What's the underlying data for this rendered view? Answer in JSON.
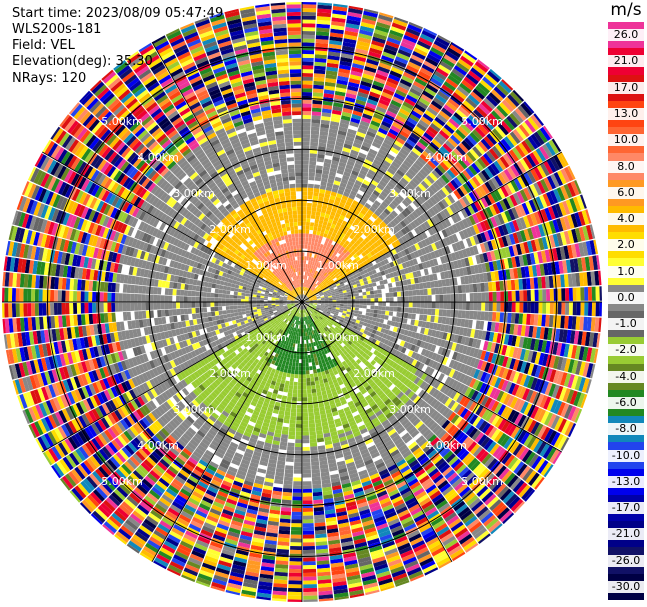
{
  "header": {
    "start_time": "Start time: 2023/08/09 05:47:49",
    "station": "WLS200s-181",
    "field": "Field: VEL",
    "elevation": "Elevation(deg): 35.30",
    "nrays": "NRays: 120"
  },
  "chart_data": {
    "type": "ppi-polar-heatmap",
    "title": "",
    "field": "VEL",
    "unit": "m/s",
    "n_rays": 120,
    "elevation_deg": 35.3,
    "range_rings_km": [
      1.0,
      2.0,
      3.0,
      4.0,
      5.0
    ],
    "range_ring_labels": [
      "1.00km",
      "2.00km",
      "3.00km",
      "4.00km",
      "5.00km"
    ],
    "max_range_km": 5.9,
    "colorbar": {
      "title": "m/s",
      "ticks": [
        "26.0",
        "21.0",
        "17.0",
        "13.0",
        "10.0",
        "8.0",
        "6.0",
        "4.0",
        "2.0",
        "1.0",
        "0.0",
        "-1.0",
        "-2.0",
        "-4.0",
        "-6.0",
        "-8.0",
        "-10.0",
        "-13.0",
        "-17.0",
        "-21.0",
        "-26.0",
        "-30.0"
      ],
      "bins": [
        {
          "label": "26.0",
          "color": "#ee3399"
        },
        {
          "label": "21.0",
          "color": "#ee0033"
        },
        {
          "label": "17.0",
          "color": "#dd1111"
        },
        {
          "label": "13.0",
          "color": "#ff4411"
        },
        {
          "label": "10.0",
          "color": "#ff6633"
        },
        {
          "label": "8.0",
          "color": "#ff8866"
        },
        {
          "label": "6.0",
          "color": "#ff9922"
        },
        {
          "label": "4.0",
          "color": "#ffbb00"
        },
        {
          "label": "2.0",
          "color": "#ffdd00"
        },
        {
          "label": "1.0",
          "color": "#ffff33"
        },
        {
          "label": "0.0",
          "color": "#888888"
        },
        {
          "label": "-1.0",
          "color": "#666666"
        },
        {
          "label": "-2.0",
          "color": "#99cc33"
        },
        {
          "label": "-4.0",
          "color": "#668822"
        },
        {
          "label": "-6.0",
          "color": "#228822"
        },
        {
          "label": "-8.0",
          "color": "#1188bb"
        },
        {
          "label": "-10.0",
          "color": "#2244ee"
        },
        {
          "label": "-13.0",
          "color": "#0000ee"
        },
        {
          "label": "-17.0",
          "color": "#0000aa"
        },
        {
          "label": "-21.0",
          "color": "#000088"
        },
        {
          "label": "-26.0",
          "color": "#111166"
        },
        {
          "label": "-30.0",
          "color": "#000044"
        }
      ]
    },
    "regions_approx": [
      {
        "azimuth_deg": [
          280,
          80
        ],
        "range_km": [
          0.1,
          2.2
        ],
        "value_ms": 3.0,
        "note": "northern sector, positive velocities"
      },
      {
        "azimuth_deg": [
          315,
          45
        ],
        "range_km": [
          0.3,
          1.3
        ],
        "value_ms": 7.0,
        "note": "northern core, stronger positive"
      },
      {
        "azimuth_deg": [
          100,
          260
        ],
        "range_km": [
          0.1,
          2.8
        ],
        "value_ms": -3.0,
        "note": "southern sector, negative velocities"
      },
      {
        "azimuth_deg": [
          150,
          210
        ],
        "range_km": [
          0.3,
          1.4
        ],
        "value_ms": -6.0,
        "note": "southern core, stronger negative"
      },
      {
        "azimuth_deg": [
          60,
          120
        ],
        "range_km": [
          0.3,
          3.6
        ],
        "value_ms": 0.0,
        "note": "eastern near-zero band"
      },
      {
        "azimuth_deg": [
          240,
          300
        ],
        "range_km": [
          0.3,
          3.6
        ],
        "value_ms": 0.0,
        "note": "western near-zero band"
      },
      {
        "azimuth_deg": [
          0,
          360
        ],
        "range_km": [
          3.6,
          5.9
        ],
        "value_ms": null,
        "note": "far-range noise, random velocities"
      }
    ]
  }
}
